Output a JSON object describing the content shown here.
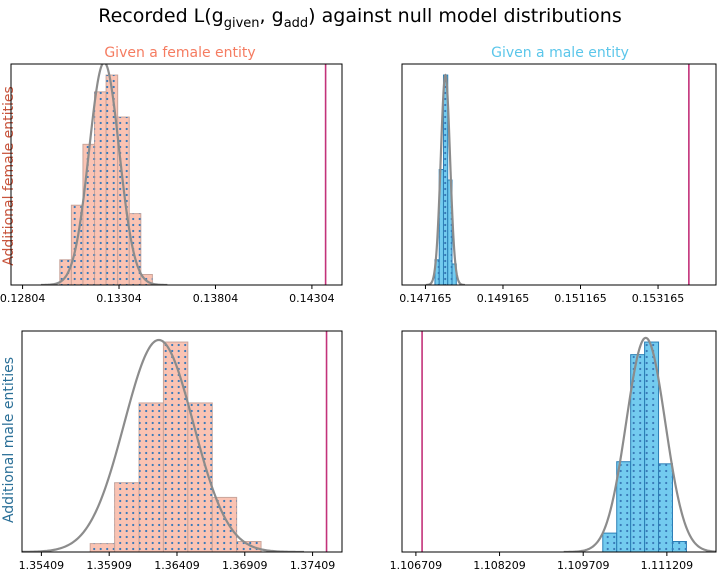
{
  "figure": {
    "title_main": "Recorded L(g",
    "title_sub1": "given",
    "title_sep": ", g",
    "title_sub2": "add",
    "title_end": ") against null model distributions",
    "col_titles": [
      "Given a female entity",
      "Given a male entity"
    ],
    "row_labels": [
      "Additional female entities",
      "Additional male entities"
    ],
    "colors": {
      "female": "#f57c61",
      "female_fill": "#f9b8a6",
      "male": "#5bc6ea",
      "male_fill": "#6cc8ee",
      "male_edge": "#2a7fb6",
      "row_female_label": "#c8553d",
      "row_male_label": "#2a6f97",
      "kde": "#8c8c8c",
      "observed_line": "#c3327a",
      "dots": "#3a7ab8"
    }
  },
  "chart_data": [
    {
      "type": "bar",
      "panel": "female-given-female",
      "fill": "female",
      "xlim": [
        0.12744,
        0.1446
      ],
      "xticks": [
        0.12804,
        0.13304,
        0.13804,
        0.14304
      ],
      "xtick_labels": [
        "0.12804",
        "0.13304",
        "0.13804",
        "0.14304"
      ],
      "bin_edges": [
        0.12997,
        0.13057,
        0.13117,
        0.13177,
        0.13237,
        0.13297,
        0.13357,
        0.13417,
        0.13477
      ],
      "counts": [
        0.12,
        0.38,
        0.67,
        0.92,
        1.0,
        0.8,
        0.34,
        0.05
      ],
      "kde": {
        "mean": 0.13227,
        "sd": 0.00078,
        "peak": 1.06
      },
      "observed": 0.14375
    },
    {
      "type": "bar",
      "panel": "male-given-female",
      "fill": "male",
      "xlim": [
        0.14656,
        0.15466
      ],
      "xticks": [
        0.147165,
        0.149165,
        0.151165,
        0.153165
      ],
      "xtick_labels": [
        "0.147165",
        "0.149165",
        "0.151165",
        "0.153165"
      ],
      "bin_edges": [
        0.14741,
        0.14752,
        0.14763,
        0.14774,
        0.14785,
        0.14796
      ],
      "counts": [
        0.12,
        0.55,
        1.0,
        0.5,
        0.1
      ],
      "kde": {
        "mean": 0.14768,
        "sd": 0.00012,
        "peak": 1.0
      },
      "observed": 0.15396
    },
    {
      "type": "bar",
      "panel": "female-given-male",
      "fill": "female",
      "xlim": [
        1.35266,
        1.37626
      ],
      "xticks": [
        1.35409,
        1.35909,
        1.36409,
        1.36909,
        1.37409
      ],
      "xtick_labels": [
        "1.35409",
        "1.35909",
        "1.36409",
        "1.36909",
        "1.37409"
      ],
      "bin_edges": [
        1.35769,
        1.35949,
        1.36129,
        1.36309,
        1.36489,
        1.36669,
        1.36849,
        1.37029
      ],
      "counts": [
        0.04,
        0.33,
        0.71,
        1.0,
        0.71,
        0.26,
        0.05
      ],
      "kde": {
        "mean": 1.36275,
        "sd": 0.00255,
        "peak": 1.01
      },
      "observed": 1.37512
    },
    {
      "type": "bar",
      "panel": "male-given-male",
      "fill": "male",
      "xlim": [
        1.10646,
        1.11209
      ],
      "xticks": [
        1.106709,
        1.108209,
        1.109709,
        1.111209
      ],
      "xtick_labels": [
        "1.106709",
        "1.108209",
        "1.109709",
        "1.111209"
      ],
      "bin_edges": [
        1.11006,
        1.11031,
        1.11056,
        1.11081,
        1.11106,
        1.11131,
        1.11156
      ],
      "counts": [
        0.09,
        0.43,
        0.94,
        1.0,
        0.42,
        0.05
      ],
      "kde": {
        "mean": 1.11083,
        "sd": 0.00035,
        "peak": 1.02
      },
      "observed": 1.10682
    }
  ]
}
